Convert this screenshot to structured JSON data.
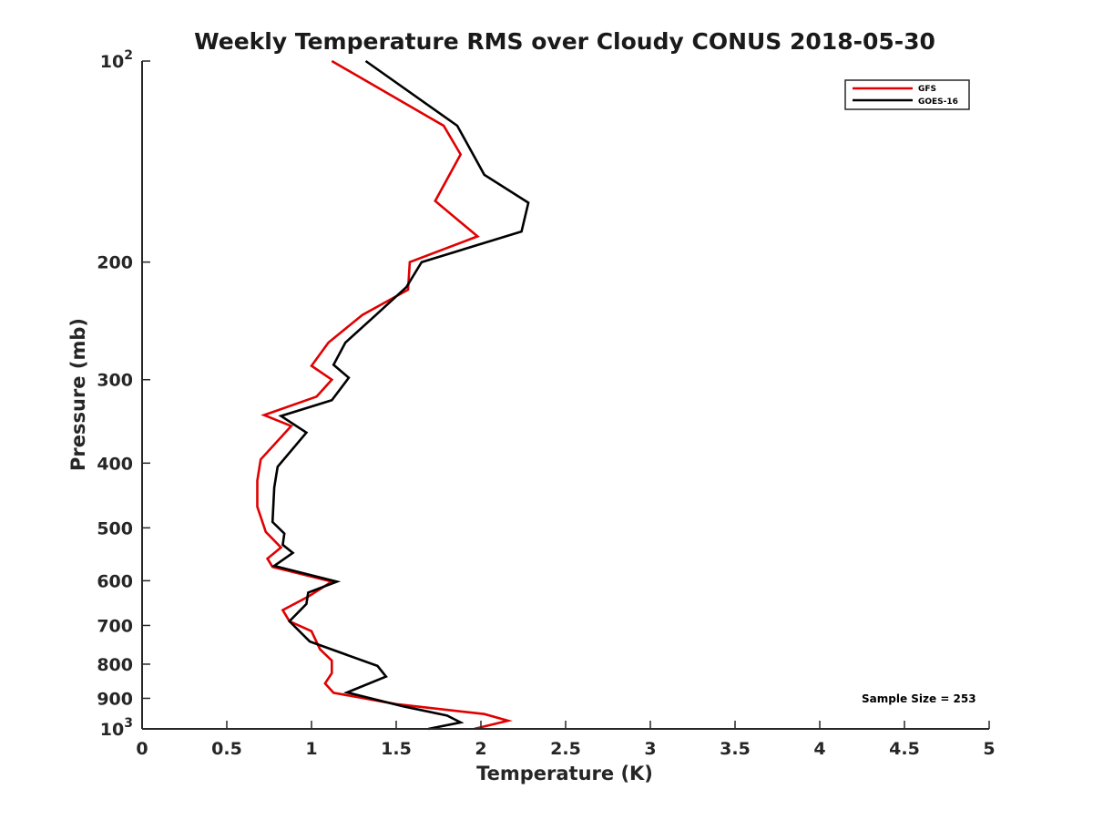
{
  "chart_data": {
    "type": "line",
    "title": "Weekly Temperature RMS over Cloudy CONUS 2018-05-30",
    "xlabel": "Temperature (K)",
    "ylabel": "Pressure (mb)",
    "xlim": [
      0,
      5
    ],
    "ylim": [
      100,
      1000
    ],
    "y_scale": "log",
    "y_reversed": true,
    "grid": false,
    "legend_position": "top-right",
    "x_ticks": [
      "0",
      "0.5",
      "1",
      "1.5",
      "2",
      "2.5",
      "3",
      "3.5",
      "4",
      "4.5",
      "5"
    ],
    "y_ticks": [
      {
        "value": 100,
        "base": "10",
        "exp": "2",
        "label": ""
      },
      {
        "value": 200,
        "label": "200"
      },
      {
        "value": 300,
        "label": "300"
      },
      {
        "value": 400,
        "label": "400"
      },
      {
        "value": 500,
        "label": "500"
      },
      {
        "value": 600,
        "label": "600"
      },
      {
        "value": 700,
        "label": "700"
      },
      {
        "value": 800,
        "label": "800"
      },
      {
        "value": 900,
        "label": "900"
      },
      {
        "value": 1000,
        "base": "10",
        "exp": "3",
        "label": ""
      }
    ],
    "annotation": "Sample Size = 253",
    "series": [
      {
        "name": "GFS",
        "color": "#e00000",
        "points": [
          [
            1.12,
            100
          ],
          [
            1.78,
            125
          ],
          [
            1.88,
            138
          ],
          [
            1.73,
            162
          ],
          [
            1.98,
            183
          ],
          [
            1.58,
            200
          ],
          [
            1.57,
            220
          ],
          [
            1.3,
            240
          ],
          [
            1.1,
            264
          ],
          [
            1.0,
            286
          ],
          [
            1.12,
            300
          ],
          [
            1.03,
            318
          ],
          [
            0.72,
            339
          ],
          [
            0.88,
            352
          ],
          [
            0.7,
            395
          ],
          [
            0.68,
            425
          ],
          [
            0.68,
            465
          ],
          [
            0.73,
            507
          ],
          [
            0.82,
            535
          ],
          [
            0.74,
            556
          ],
          [
            0.77,
            572
          ],
          [
            1.12,
            602
          ],
          [
            0.98,
            634
          ],
          [
            0.83,
            664
          ],
          [
            0.87,
            690
          ],
          [
            1.0,
            714
          ],
          [
            1.05,
            760
          ],
          [
            1.12,
            790
          ],
          [
            1.12,
            825
          ],
          [
            1.08,
            855
          ],
          [
            1.13,
            883
          ],
          [
            1.5,
            918
          ],
          [
            2.02,
            950
          ],
          [
            2.16,
            972
          ],
          [
            1.96,
            1000
          ]
        ]
      },
      {
        "name": "GOES-16",
        "color": "#000000",
        "points": [
          [
            1.32,
            100
          ],
          [
            1.86,
            125
          ],
          [
            2.02,
            148
          ],
          [
            2.28,
            163
          ],
          [
            2.24,
            180
          ],
          [
            1.65,
            200
          ],
          [
            1.56,
            218
          ],
          [
            1.38,
            240
          ],
          [
            1.2,
            264
          ],
          [
            1.13,
            285
          ],
          [
            1.22,
            298
          ],
          [
            1.12,
            322
          ],
          [
            0.82,
            340
          ],
          [
            0.97,
            360
          ],
          [
            0.8,
            405
          ],
          [
            0.78,
            435
          ],
          [
            0.77,
            490
          ],
          [
            0.84,
            510
          ],
          [
            0.83,
            530
          ],
          [
            0.89,
            545
          ],
          [
            0.78,
            570
          ],
          [
            1.15,
            602
          ],
          [
            0.98,
            625
          ],
          [
            0.97,
            650
          ],
          [
            0.87,
            690
          ],
          [
            0.99,
            740
          ],
          [
            1.39,
            805
          ],
          [
            1.44,
            835
          ],
          [
            1.21,
            882
          ],
          [
            1.54,
            925
          ],
          [
            1.8,
            955
          ],
          [
            1.88,
            978
          ],
          [
            1.69,
            1000
          ]
        ]
      }
    ]
  }
}
